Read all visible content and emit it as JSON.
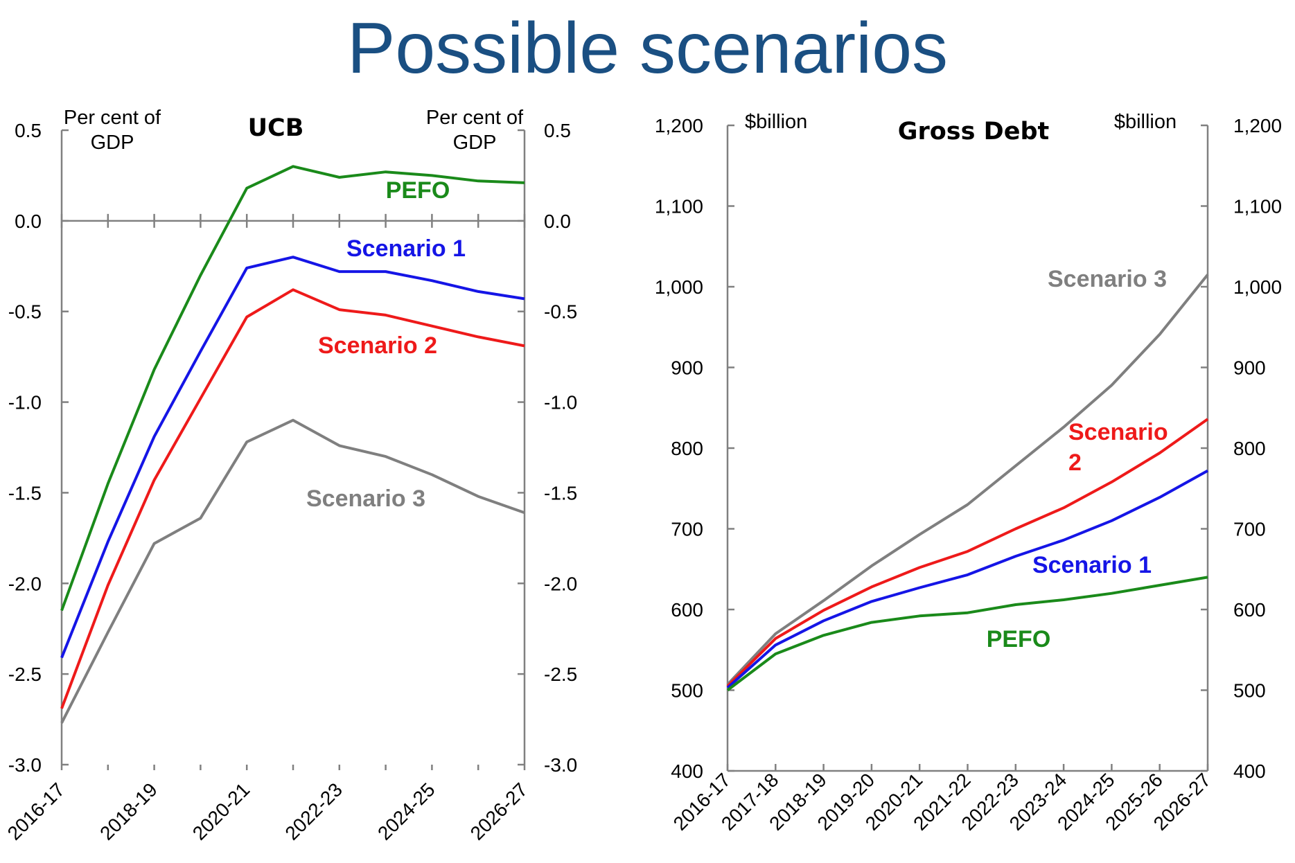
{
  "page": {
    "title": "Possible scenarios"
  },
  "chart_data": [
    {
      "type": "line",
      "title": "UCB",
      "ylabel_left": [
        "Per cent of",
        "GDP"
      ],
      "ylabel_right": [
        "Per cent of",
        "GDP"
      ],
      "ylim": [
        -3.0,
        0.5
      ],
      "yticks": [
        0.5,
        0.0,
        -0.5,
        -1.0,
        -1.5,
        -2.0,
        -2.5,
        -3.0
      ],
      "ytick_labels": [
        "0.5",
        "0.0",
        "-0.5",
        "-1.0",
        "-1.5",
        "-2.0",
        "-2.5",
        "-3.0"
      ],
      "x": [
        "2016-17",
        "2017-18",
        "2018-19",
        "2019-20",
        "2020-21",
        "2021-22",
        "2022-23",
        "2023-24",
        "2024-25",
        "2025-26",
        "2026-27"
      ],
      "xtick_labels": [
        "2016-17",
        "2018-19",
        "2020-21",
        "2022-23",
        "2024-25",
        "2026-27"
      ],
      "series": [
        {
          "name": "PEFO",
          "color": "#1a8a1a",
          "values": [
            -2.15,
            -1.45,
            -0.82,
            -0.3,
            0.18,
            0.3,
            0.24,
            0.27,
            0.25,
            0.22,
            0.21
          ]
        },
        {
          "name": "Scenario 1",
          "color": "#1515e6",
          "values": [
            -2.41,
            -1.77,
            -1.19,
            -0.72,
            -0.26,
            -0.2,
            -0.28,
            -0.28,
            -0.33,
            -0.39,
            -0.43
          ]
        },
        {
          "name": "Scenario 2",
          "color": "#ee1a1a",
          "values": [
            -2.69,
            -2.01,
            -1.43,
            -0.98,
            -0.53,
            -0.38,
            -0.49,
            -0.52,
            -0.58,
            -0.64,
            -0.69
          ]
        },
        {
          "name": "Scenario 3",
          "color": "#7f7f7f",
          "values": [
            -2.77,
            -2.27,
            -1.78,
            -1.64,
            -1.22,
            -1.1,
            -1.24,
            -1.3,
            -1.4,
            -1.52,
            -1.61
          ]
        }
      ]
    },
    {
      "type": "line",
      "title": "Gross Debt",
      "ylabel_left": "$billion",
      "ylabel_right": "$billion",
      "ylim": [
        400,
        1200
      ],
      "yticks": [
        1200,
        1100,
        1000,
        900,
        800,
        700,
        600,
        500,
        400
      ],
      "ytick_labels": [
        "1,200",
        "1,100",
        "1,000",
        "900",
        "800",
        "700",
        "600",
        "500",
        "400"
      ],
      "x": [
        "2016-17",
        "2017-18",
        "2018-19",
        "2019-20",
        "2020-21",
        "2021-22",
        "2022-23",
        "2023-24",
        "2024-25",
        "2025-26",
        "2026-27"
      ],
      "xtick_labels": [
        "2016-17",
        "2017-18",
        "2018-19",
        "2019-20",
        "2020-21",
        "2021-22",
        "2022-23",
        "2023-24",
        "2024-25",
        "2025-26",
        "2026-27"
      ],
      "series": [
        {
          "name": "PEFO",
          "color": "#1a8a1a",
          "values": [
            500,
            545,
            568,
            584,
            592,
            596,
            606,
            612,
            620,
            630,
            640
          ]
        },
        {
          "name": "Scenario 1",
          "color": "#1515e6",
          "values": [
            503,
            556,
            586,
            610,
            627,
            643,
            666,
            686,
            710,
            739,
            772
          ]
        },
        {
          "name": "Scenario 2",
          "color": "#ee1a1a",
          "values": [
            505,
            564,
            599,
            628,
            652,
            672,
            700,
            726,
            758,
            794,
            836
          ]
        },
        {
          "name": "Scenario 3",
          "color": "#7f7f7f",
          "values": [
            507,
            570,
            611,
            654,
            693,
            730,
            778,
            826,
            878,
            941,
            1015
          ]
        }
      ]
    }
  ]
}
